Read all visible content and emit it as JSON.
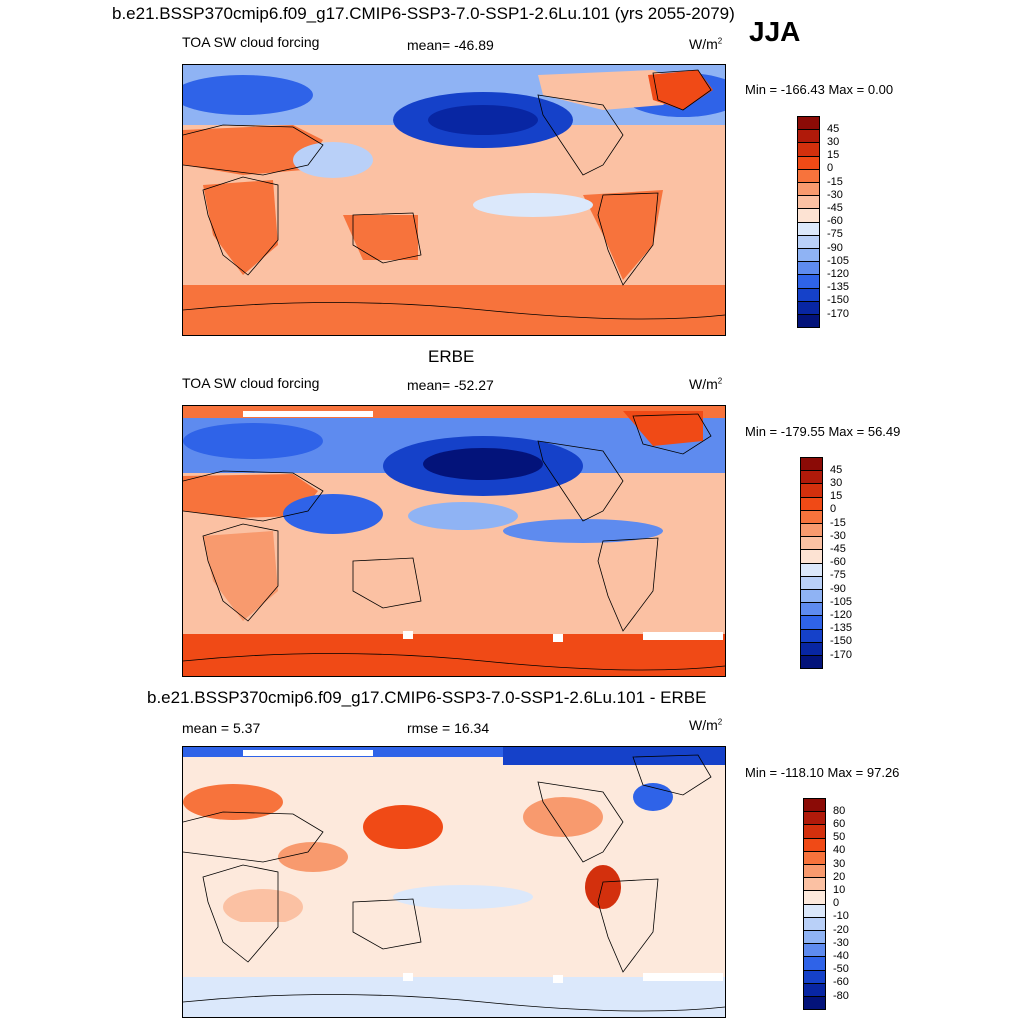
{
  "header": {
    "title": "b.e21.BSSP370cmip6.f09_g17.CMIP6-SSP3-7.0-SSP1-2.6Lu.101 (yrs 2055-2079)",
    "season": "JJA"
  },
  "panels": [
    {
      "title": "",
      "left_label": "TOA SW cloud forcing",
      "center_label": "mean= -46.89",
      "units": "W/m",
      "units_sup": "2",
      "minmax": "Min = -166.43 Max =   0.00",
      "colorbar": {
        "ticks": [
          "45",
          "30",
          "15",
          "0",
          "-15",
          "-30",
          "-45",
          "-60",
          "-75",
          "-90",
          "-105",
          "-120",
          "-135",
          "-150",
          "-170"
        ],
        "colors": [
          "#8b0b06",
          "#b01a0a",
          "#d3300d",
          "#f04a16",
          "#f7733c",
          "#f89a6e",
          "#fbc1a3",
          "#fde3d3",
          "#dbe8fb",
          "#b9d0f8",
          "#8fb3f4",
          "#5e8bef",
          "#2f63e8",
          "#1541c9",
          "#0826a3",
          "#03137a"
        ]
      }
    },
    {
      "title": "ERBE",
      "left_label": "TOA SW cloud forcing",
      "center_label": "mean= -52.27",
      "units": "W/m",
      "units_sup": "2",
      "minmax": "Min = -179.55 Max =  56.49",
      "colorbar": {
        "ticks": [
          "45",
          "30",
          "15",
          "0",
          "-15",
          "-30",
          "-45",
          "-60",
          "-75",
          "-90",
          "-105",
          "-120",
          "-135",
          "-150",
          "-170"
        ],
        "colors": [
          "#8b0b06",
          "#b01a0a",
          "#d3300d",
          "#f04a16",
          "#f7733c",
          "#f89a6e",
          "#fbc1a3",
          "#fde3d3",
          "#dbe8fb",
          "#b9d0f8",
          "#8fb3f4",
          "#5e8bef",
          "#2f63e8",
          "#1541c9",
          "#0826a3",
          "#03137a"
        ]
      }
    },
    {
      "title": "b.e21.BSSP370cmip6.f09_g17.CMIP6-SSP3-7.0-SSP1-2.6Lu.101 - ERBE",
      "left_label": "mean =   5.37",
      "center_label": "rmse =  16.34",
      "units": "W/m",
      "units_sup": "2",
      "minmax": "Min = -118.10 Max =  97.26",
      "colorbar": {
        "ticks": [
          "80",
          "60",
          "50",
          "40",
          "30",
          "20",
          "10",
          "0",
          "-10",
          "-20",
          "-30",
          "-40",
          "-50",
          "-60",
          "-80"
        ],
        "colors": [
          "#8b0b06",
          "#b01a0a",
          "#d3300d",
          "#f04a16",
          "#f7733c",
          "#f89a6e",
          "#fbc1a3",
          "#fde9dc",
          "#dbe8fb",
          "#b9d0f8",
          "#8fb3f4",
          "#5e8bef",
          "#2f63e8",
          "#1541c9",
          "#0826a3",
          "#03137a"
        ]
      }
    }
  ]
}
